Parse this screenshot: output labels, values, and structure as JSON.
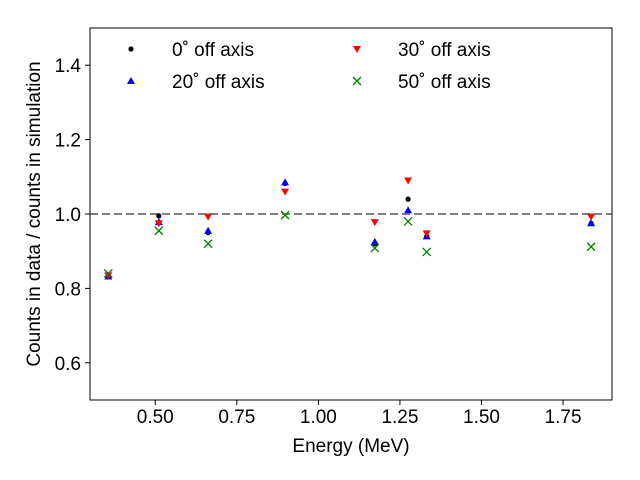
{
  "chart_data": {
    "type": "scatter",
    "title": "",
    "xlabel": "Energy (MeV)",
    "ylabel": "Counts in data / counts in simulation",
    "xlim": [
      0.3,
      1.9
    ],
    "ylim": [
      0.5,
      1.5
    ],
    "xticks": [
      "0.50",
      "0.75",
      "1.00",
      "1.25",
      "1.50",
      "1.75"
    ],
    "yticks": [
      "0.6",
      "0.8",
      "1.0",
      "1.2",
      "1.4"
    ],
    "reference_line": {
      "y": 1.0,
      "style": "dashed",
      "color": "#808080"
    },
    "legend_position": "top",
    "series": [
      {
        "name": "0$^\\circ$ off axis",
        "label": "0˚ off axis",
        "marker": "dot",
        "color": "#000000",
        "x": [
          0.356,
          0.511,
          0.662,
          0.898,
          1.173,
          1.275,
          1.332,
          1.836
        ],
        "y": [
          0.832,
          0.995,
          0.95,
          1.082,
          0.92,
          1.04,
          0.94,
          0.975
        ]
      },
      {
        "name": "20$^\\circ$ off axis",
        "label": "20˚ off axis",
        "marker": "triangle-up",
        "color": "#0000ff",
        "x": [
          0.356,
          0.511,
          0.662,
          0.898,
          1.173,
          1.275,
          1.332,
          1.836
        ],
        "y": [
          0.832,
          0.978,
          0.955,
          1.085,
          0.925,
          1.01,
          0.94,
          0.975
        ]
      },
      {
        "name": "30$^\\circ$ off axis",
        "label": "30˚ off axis",
        "marker": "triangle-down",
        "color": "#ff0000",
        "x": [
          0.356,
          0.511,
          0.662,
          0.898,
          1.173,
          1.275,
          1.332,
          1.836
        ],
        "y": [
          0.835,
          0.975,
          0.993,
          1.06,
          0.978,
          1.09,
          0.948,
          0.993
        ]
      },
      {
        "name": "50$^\\circ$ off axis",
        "label": "50˚ off axis",
        "marker": "x",
        "color": "#008000",
        "x": [
          0.356,
          0.511,
          0.662,
          0.898,
          1.173,
          1.275,
          1.332,
          1.836
        ],
        "y": [
          0.84,
          0.955,
          0.92,
          0.997,
          0.908,
          0.98,
          0.898,
          0.912
        ]
      }
    ]
  }
}
